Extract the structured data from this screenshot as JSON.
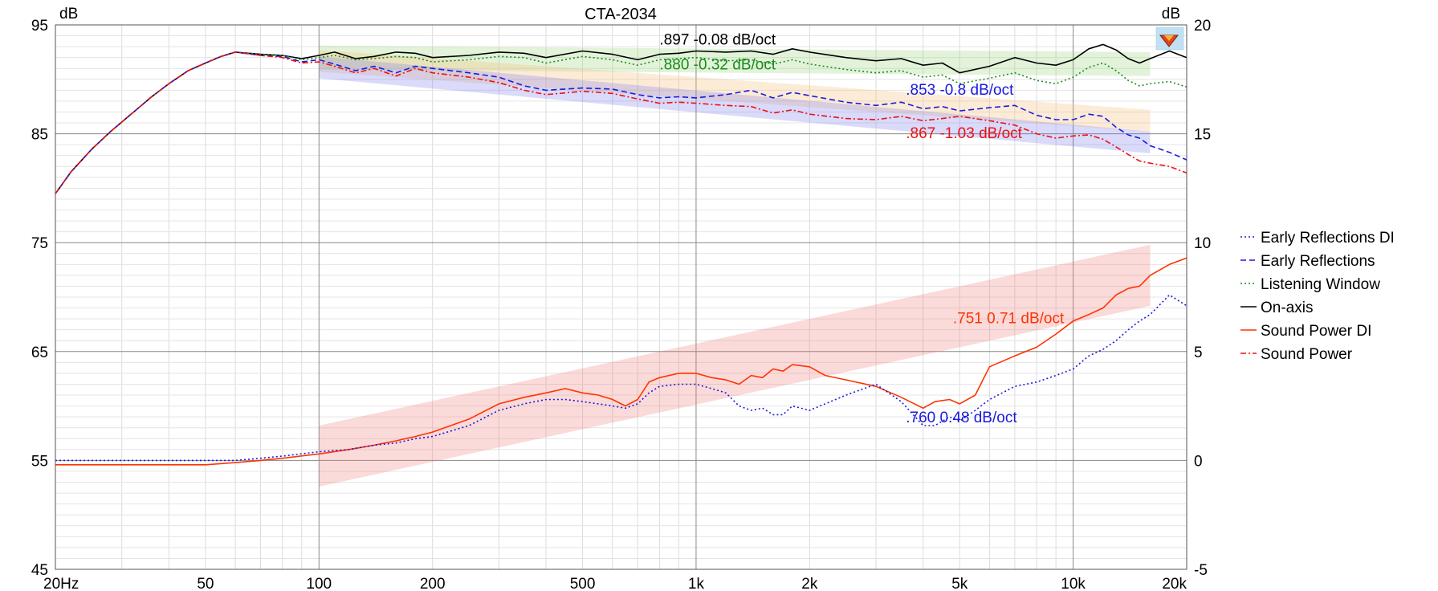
{
  "chart_data": {
    "type": "line",
    "title": "CTA-2034",
    "x_scale": "log",
    "xlim": [
      20,
      20000
    ],
    "ylim_left": [
      45,
      95
    ],
    "ylim_right": [
      -5,
      20
    ],
    "left_unit": "dB",
    "right_unit": "dB",
    "left_ticks": [
      "95",
      "85",
      "75",
      "65",
      "55",
      "45"
    ],
    "right_ticks": [
      "20",
      "15",
      "10",
      "5",
      "0",
      "-5"
    ],
    "x_ticks": [
      {
        "v": 20,
        "label": "20Hz"
      },
      {
        "v": 50,
        "label": "50"
      },
      {
        "v": 100,
        "label": "100"
      },
      {
        "v": 200,
        "label": "200"
      },
      {
        "v": 500,
        "label": "500"
      },
      {
        "v": 1000,
        "label": "1k"
      },
      {
        "v": 2000,
        "label": "2k"
      },
      {
        "v": 5000,
        "label": "5k"
      },
      {
        "v": 10000,
        "label": "10k"
      },
      {
        "v": 20000,
        "label": "20k"
      }
    ],
    "grid": true,
    "legend_position": "right",
    "legend": [
      {
        "name": "Early Reflections DI",
        "color": "#1a1adf",
        "dash": "2,3"
      },
      {
        "name": "Early Reflections",
        "color": "#1a1adf",
        "dash": "7,4"
      },
      {
        "name": "Listening Window",
        "color": "#1a8c1a",
        "dash": "2,3"
      },
      {
        "name": "On-axis",
        "color": "#000000",
        "dash": ""
      },
      {
        "name": "Sound Power DI",
        "color": "#ff3300",
        "dash": ""
      },
      {
        "name": "Sound Power",
        "color": "#ee1111",
        "dash": "7,3,2,3"
      }
    ],
    "series": [
      {
        "name": "On-axis",
        "axis": "left",
        "color": "#000000",
        "dash": "",
        "width": 1.6,
        "x": [
          20,
          22,
          25,
          28,
          32,
          36,
          40,
          45,
          50,
          55,
          60,
          70,
          80,
          90,
          100,
          110,
          125,
          140,
          160,
          180,
          200,
          250,
          300,
          350,
          400,
          500,
          600,
          700,
          800,
          900,
          1000,
          1200,
          1400,
          1600,
          1800,
          2000,
          2500,
          3000,
          3500,
          4000,
          4500,
          5000,
          6000,
          7000,
          8000,
          9000,
          10000,
          11000,
          12000,
          13000,
          14000,
          15000,
          16000,
          18000,
          20000
        ],
        "y": [
          79.5,
          81.5,
          83.6,
          85.2,
          86.9,
          88.4,
          89.6,
          90.8,
          91.5,
          92.1,
          92.5,
          92.3,
          92.2,
          91.9,
          92.2,
          92.5,
          91.9,
          92.1,
          92.5,
          92.4,
          92.0,
          92.2,
          92.5,
          92.4,
          92.0,
          92.6,
          92.3,
          91.8,
          92.3,
          92.4,
          92.6,
          92.5,
          92.6,
          92.3,
          92.8,
          92.5,
          92.0,
          91.7,
          91.9,
          91.3,
          91.5,
          90.6,
          91.2,
          92.0,
          91.5,
          91.3,
          91.8,
          92.8,
          93.2,
          92.7,
          91.9,
          91.5,
          91.9,
          92.6,
          92.0
        ]
      },
      {
        "name": "Listening Window",
        "axis": "left",
        "color": "#1a8c1a",
        "dash": "2,3",
        "width": 1.6,
        "x": [
          20,
          22,
          25,
          28,
          32,
          36,
          40,
          45,
          50,
          55,
          60,
          70,
          80,
          90,
          100,
          110,
          125,
          140,
          160,
          180,
          200,
          250,
          300,
          350,
          400,
          500,
          600,
          700,
          800,
          900,
          1000,
          1200,
          1400,
          1600,
          1800,
          2000,
          2500,
          3000,
          3500,
          4000,
          4500,
          5000,
          6000,
          7000,
          8000,
          9000,
          10000,
          11000,
          12000,
          13000,
          14000,
          15000,
          16000,
          18000,
          20000
        ],
        "y": [
          79.5,
          81.5,
          83.6,
          85.2,
          86.9,
          88.4,
          89.6,
          90.8,
          91.5,
          92.1,
          92.5,
          92.3,
          92.2,
          91.8,
          92.0,
          92.2,
          91.8,
          91.9,
          92.1,
          92.0,
          91.6,
          91.8,
          92.1,
          92.0,
          91.5,
          92.1,
          91.8,
          91.3,
          91.8,
          91.9,
          92.0,
          91.7,
          91.8,
          91.4,
          91.8,
          91.4,
          90.9,
          90.6,
          90.8,
          90.2,
          90.4,
          89.6,
          90.1,
          90.6,
          89.9,
          89.6,
          90.2,
          91.1,
          91.5,
          90.8,
          89.9,
          89.4,
          89.6,
          89.8,
          89.3
        ]
      },
      {
        "name": "Early Reflections",
        "axis": "left",
        "color": "#1a1adf",
        "dash": "7,4",
        "width": 1.6,
        "x": [
          20,
          22,
          25,
          28,
          32,
          36,
          40,
          45,
          50,
          55,
          60,
          70,
          80,
          90,
          100,
          110,
          125,
          140,
          160,
          180,
          200,
          250,
          300,
          350,
          400,
          500,
          600,
          700,
          800,
          900,
          1000,
          1200,
          1400,
          1600,
          1800,
          2000,
          2500,
          3000,
          3500,
          4000,
          4500,
          5000,
          6000,
          7000,
          8000,
          9000,
          10000,
          11000,
          12000,
          13000,
          14000,
          15000,
          16000,
          18000,
          20000
        ],
        "y": [
          79.5,
          81.5,
          83.6,
          85.2,
          86.9,
          88.4,
          89.6,
          90.8,
          91.5,
          92.1,
          92.5,
          92.2,
          92.1,
          91.6,
          91.8,
          91.4,
          90.8,
          91.2,
          90.6,
          91.2,
          91.0,
          90.6,
          90.2,
          89.4,
          89.0,
          89.2,
          89.1,
          88.6,
          88.3,
          88.4,
          88.3,
          88.6,
          89.0,
          88.3,
          88.8,
          88.5,
          87.9,
          87.6,
          87.9,
          87.3,
          87.5,
          87.1,
          87.4,
          87.6,
          86.7,
          86.3,
          86.3,
          86.8,
          86.6,
          85.6,
          84.9,
          84.6,
          83.9,
          83.3,
          82.6
        ]
      },
      {
        "name": "Sound Power",
        "axis": "left",
        "color": "#ee1111",
        "dash": "7,3,2,3",
        "width": 1.6,
        "x": [
          20,
          22,
          25,
          28,
          32,
          36,
          40,
          45,
          50,
          55,
          60,
          70,
          80,
          90,
          100,
          110,
          125,
          140,
          160,
          180,
          200,
          250,
          300,
          350,
          400,
          500,
          600,
          700,
          800,
          900,
          1000,
          1200,
          1400,
          1600,
          1800,
          2000,
          2500,
          3000,
          3500,
          4000,
          4500,
          5000,
          6000,
          7000,
          8000,
          9000,
          10000,
          11000,
          12000,
          13000,
          14000,
          15000,
          16000,
          18000,
          20000
        ],
        "y": [
          79.5,
          81.5,
          83.6,
          85.2,
          86.9,
          88.4,
          89.6,
          90.8,
          91.5,
          92.1,
          92.5,
          92.2,
          92.0,
          91.5,
          91.6,
          91.2,
          90.6,
          91.0,
          90.3,
          91.0,
          90.6,
          90.2,
          89.7,
          89.0,
          88.6,
          88.9,
          88.7,
          88.2,
          87.8,
          87.9,
          87.8,
          87.6,
          87.5,
          86.9,
          87.2,
          86.8,
          86.4,
          86.3,
          86.6,
          86.2,
          86.4,
          86.6,
          86.2,
          85.8,
          85.0,
          84.6,
          84.8,
          84.9,
          84.5,
          83.8,
          83.1,
          82.5,
          82.3,
          82.0,
          81.4
        ]
      },
      {
        "name": "Sound Power DI",
        "axis": "right",
        "color": "#ff3300",
        "dash": "",
        "width": 1.6,
        "x": [
          20,
          40,
          50,
          60,
          70,
          80,
          100,
          120,
          140,
          160,
          180,
          200,
          250,
          300,
          350,
          400,
          450,
          500,
          550,
          600,
          650,
          700,
          750,
          800,
          900,
          1000,
          1100,
          1200,
          1300,
          1400,
          1500,
          1600,
          1700,
          1800,
          2000,
          2200,
          2500,
          3000,
          3500,
          4000,
          4300,
          4700,
          5000,
          5500,
          6000,
          7000,
          8000,
          9000,
          10000,
          11000,
          12000,
          13000,
          14000,
          15000,
          16000,
          18000,
          20000
        ],
        "y": [
          -0.2,
          -0.2,
          -0.2,
          -0.1,
          0.0,
          0.1,
          0.3,
          0.5,
          0.7,
          0.9,
          1.1,
          1.3,
          1.9,
          2.6,
          2.9,
          3.1,
          3.3,
          3.1,
          3.0,
          2.8,
          2.5,
          2.8,
          3.6,
          3.8,
          4.0,
          4.0,
          3.8,
          3.7,
          3.5,
          3.9,
          3.8,
          4.2,
          4.1,
          4.4,
          4.3,
          3.9,
          3.7,
          3.4,
          2.9,
          2.4,
          2.7,
          2.8,
          2.6,
          3.0,
          4.3,
          4.8,
          5.2,
          5.8,
          6.4,
          6.7,
          7.0,
          7.6,
          7.9,
          8.0,
          8.5,
          9.0,
          9.3
        ]
      },
      {
        "name": "Early Reflections DI",
        "axis": "right",
        "color": "#1a1adf",
        "dash": "2,3",
        "width": 1.6,
        "x": [
          20,
          40,
          50,
          60,
          70,
          80,
          100,
          120,
          140,
          160,
          180,
          200,
          250,
          300,
          350,
          400,
          450,
          500,
          550,
          600,
          650,
          700,
          750,
          800,
          900,
          1000,
          1100,
          1200,
          1300,
          1400,
          1500,
          1600,
          1700,
          1800,
          2000,
          2200,
          2500,
          3000,
          3500,
          4000,
          4300,
          4700,
          5000,
          5500,
          6000,
          7000,
          8000,
          9000,
          10000,
          11000,
          12000,
          13000,
          14000,
          15000,
          16000,
          18000,
          20000
        ],
        "y": [
          0.0,
          0.0,
          0.0,
          0.0,
          0.1,
          0.2,
          0.4,
          0.5,
          0.7,
          0.8,
          1.0,
          1.1,
          1.6,
          2.3,
          2.6,
          2.8,
          2.8,
          2.7,
          2.6,
          2.5,
          2.4,
          2.6,
          3.1,
          3.4,
          3.5,
          3.5,
          3.3,
          3.1,
          2.5,
          2.3,
          2.4,
          2.1,
          2.1,
          2.5,
          2.3,
          2.6,
          3.0,
          3.5,
          2.7,
          1.6,
          1.6,
          2.0,
          1.8,
          2.3,
          2.8,
          3.4,
          3.6,
          3.9,
          4.2,
          4.8,
          5.1,
          5.5,
          6.0,
          6.4,
          6.7,
          7.6,
          7.1
        ]
      }
    ],
    "trend_bands": [
      {
        "axis": "left",
        "color": "#8ad06a",
        "opacity": 0.25,
        "x": [
          100,
          16000
        ],
        "center": [
          92.0,
          91.4
        ],
        "half": 1.1
      },
      {
        "axis": "left",
        "color": "#f5c07a",
        "opacity": 0.3,
        "x": [
          100,
          16000
        ],
        "center": [
          91.7,
          86.2
        ],
        "half": 1.0
      },
      {
        "axis": "left",
        "color": "#6a6af0",
        "opacity": 0.25,
        "x": [
          100,
          16000
        ],
        "center": [
          91.1,
          84.2
        ],
        "half": 1.0
      },
      {
        "axis": "right",
        "color": "#f07a7a",
        "opacity": 0.28,
        "x": [
          100,
          16000
        ],
        "center": [
          0.2,
          8.5
        ],
        "half": 1.4
      }
    ],
    "annotations": [
      {
        "text": ".897  -0.08 dB/oct",
        "color": "#000000",
        "x": 800,
        "axis": "left",
        "y": 93.2
      },
      {
        "text": ".880  -0.32 dB/oct",
        "color": "#1a8c1a",
        "x": 800,
        "axis": "left",
        "y": 90.9
      },
      {
        "text": ".853  -0.8 dB/oct",
        "color": "#1a1adf",
        "x": 3600,
        "axis": "left",
        "y": 88.6
      },
      {
        "text": ".867  -1.03 dB/oct",
        "color": "#ee1111",
        "x": 3600,
        "axis": "left",
        "y": 84.6
      },
      {
        "text": ".751  0.71 dB/oct",
        "color": "#ff3300",
        "x": 4800,
        "axis": "right",
        "y": 6.3
      },
      {
        "text": ".760  0.48 dB/oct",
        "color": "#1a1adf",
        "x": 3600,
        "axis": "right",
        "y": 1.75
      }
    ]
  }
}
